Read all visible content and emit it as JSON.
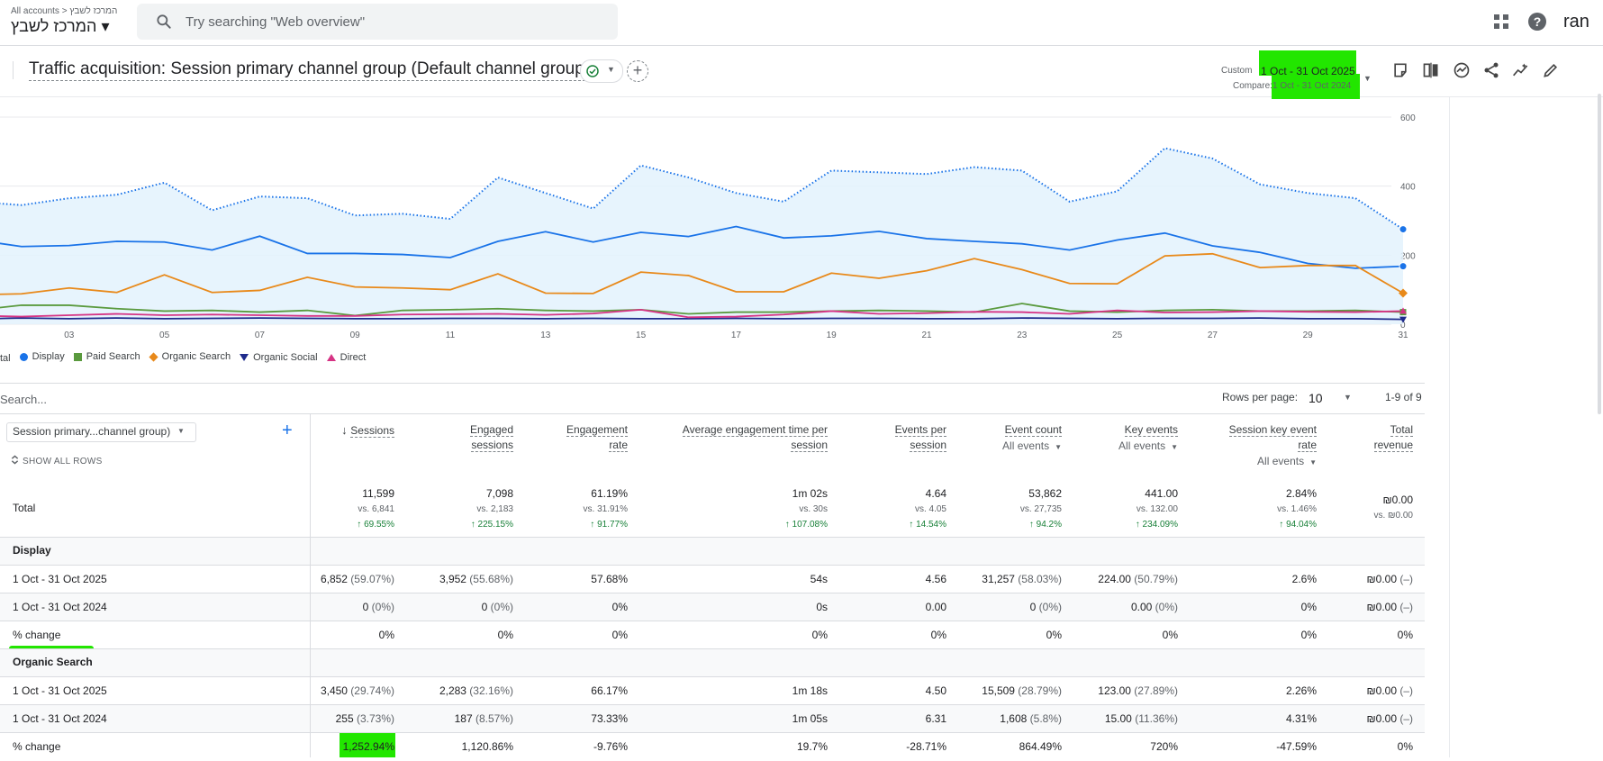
{
  "topbar": {
    "breadcrumb": "All accounts > המרכז לשבץ",
    "account": "המרכז לשבץ ▾",
    "search_placeholder": "Try searching \"Web overview\"",
    "user_initials": "ran",
    "icons": [
      "apps-grid-icon",
      "help-icon"
    ]
  },
  "header": {
    "title": "Traffic acquisition: Session primary channel group (Default channel group)",
    "date_label": "Custom",
    "date_range": "1 Oct - 31 Oct 2025",
    "compare_label": "Compare:",
    "compare_range": "1 Oct - 31 Oct 2024",
    "toolbar_icons": [
      "annotation-icon",
      "compare-icon",
      "insights-icon",
      "share-icon",
      "trend-icon",
      "edit-icon"
    ]
  },
  "chart_data": {
    "type": "line",
    "x_tick_labels": [
      "03",
      "05",
      "07",
      "09",
      "11",
      "13",
      "15",
      "17",
      "19",
      "21",
      "23",
      "25",
      "27",
      "29",
      "31"
    ],
    "y_tick_labels": [
      "600",
      "400",
      "200",
      "0"
    ],
    "x": [
      1,
      2,
      3,
      4,
      5,
      6,
      7,
      8,
      9,
      10,
      11,
      12,
      13,
      14,
      15,
      16,
      17,
      18,
      19,
      20,
      21,
      22,
      23,
      24,
      25,
      26,
      27,
      28,
      29,
      30,
      31
    ],
    "ylim": [
      0,
      600
    ],
    "series": [
      {
        "name": "Total",
        "color": "#1a73e8",
        "style": "dotted",
        "area": true,
        "values": [
          355,
          345,
          365,
          375,
          410,
          330,
          370,
          365,
          315,
          320,
          305,
          425,
          380,
          335,
          460,
          425,
          380,
          355,
          445,
          440,
          435,
          455,
          445,
          355,
          385,
          510,
          480,
          405,
          380,
          365,
          275
        ]
      },
      {
        "name": "Display",
        "color": "#1a73e8",
        "values": [
          245,
          225,
          228,
          240,
          238,
          215,
          255,
          205,
          205,
          202,
          193,
          240,
          268,
          238,
          266,
          254,
          283,
          250,
          256,
          269,
          248,
          240,
          233,
          215,
          244,
          264,
          227,
          208,
          176,
          162,
          168
        ]
      },
      {
        "name": "Paid Search",
        "color": "#5a9a3e",
        "values": [
          40,
          55,
          55,
          45,
          38,
          40,
          35,
          40,
          25,
          40,
          42,
          45,
          40,
          38,
          42,
          30,
          35,
          35,
          38,
          40,
          38,
          35,
          60,
          38,
          35,
          40,
          42,
          38,
          38,
          40,
          35
        ]
      },
      {
        "name": "Organic Search",
        "color": "#e8891a",
        "values": [
          85,
          88,
          105,
          92,
          143,
          92,
          98,
          136,
          108,
          105,
          100,
          146,
          90,
          89,
          151,
          141,
          94,
          94,
          148,
          133,
          155,
          190,
          158,
          118,
          117,
          198,
          204,
          164,
          170,
          170,
          90
        ]
      },
      {
        "name": "Organic Social",
        "color": "#1f2b8c",
        "values": [
          15,
          18,
          16,
          18,
          16,
          17,
          18,
          17,
          16,
          16,
          17,
          17,
          16,
          17,
          16,
          16,
          17,
          16,
          17,
          17,
          16,
          16,
          18,
          17,
          16,
          17,
          17,
          18,
          16,
          16,
          14
        ]
      },
      {
        "name": "Direct",
        "color": "#d63384",
        "values": [
          25,
          22,
          26,
          30,
          26,
          28,
          26,
          24,
          24,
          28,
          29,
          30,
          27,
          31,
          42,
          20,
          22,
          28,
          38,
          30,
          32,
          36,
          35,
          30,
          40,
          34,
          35,
          38,
          36,
          35,
          38
        ]
      }
    ]
  },
  "legend": [
    {
      "label": "tal",
      "color": "#1a73e8",
      "shape": "line"
    },
    {
      "label": "Display",
      "color": "#1a73e8",
      "shape": "circle"
    },
    {
      "label": "Paid Search",
      "color": "#5a9a3e",
      "shape": "square"
    },
    {
      "label": "Organic Search",
      "color": "#e8891a",
      "shape": "diamond"
    },
    {
      "label": "Organic Social",
      "color": "#1f2b8c",
      "shape": "triangle-down"
    },
    {
      "label": "Direct",
      "color": "#d63384",
      "shape": "triangle-up"
    }
  ],
  "table": {
    "search_placeholder": "Search...",
    "rows_per_page_label": "Rows per page:",
    "rows_per_page": "10",
    "pager_range": "1-9 of 9",
    "dimension_select": "Session primary...channel group)",
    "show_all_rows": "SHOW ALL ROWS",
    "columns": [
      {
        "line1": "Sessions",
        "line2": "",
        "sorted": true
      },
      {
        "line1": "Engaged",
        "line2": "sessions"
      },
      {
        "line1": "Engagement",
        "line2": "rate"
      },
      {
        "line1": "Average engagement time per",
        "line2": "session"
      },
      {
        "line1": "Events per",
        "line2": "session"
      },
      {
        "line1": "Event count",
        "sub": "All events"
      },
      {
        "line1": "Key events",
        "sub": "All events"
      },
      {
        "line1": "Session key event",
        "line2": "rate",
        "sub": "All events"
      },
      {
        "line1": "Total",
        "line2": "revenue"
      }
    ],
    "total": {
      "label": "Total",
      "main": [
        "11,599",
        "7,098",
        "61.19%",
        "1m 02s",
        "4.64",
        "53,862",
        "441.00",
        "2.84%",
        "₪0.00"
      ],
      "compare": [
        "vs. 6,841",
        "vs. 2,183",
        "vs. 31.91%",
        "vs. 30s",
        "vs. 4.05",
        "vs. 27,735",
        "vs. 132.00",
        "vs. 1.46%",
        "vs. ₪0.00"
      ],
      "change": [
        "↑ 69.55%",
        "↑ 225.15%",
        "↑ 91.77%",
        "↑ 107.08%",
        "↑ 14.54%",
        "↑ 94.2%",
        "↑ 234.09%",
        "↑ 94.04%",
        ""
      ]
    },
    "rows": [
      {
        "type": "group",
        "label": "Display"
      },
      {
        "type": "data",
        "label": "1 Oct - 31 Oct 2025",
        "cells": [
          [
            "6,852",
            " (59.07%)"
          ],
          [
            "3,952",
            " (55.68%)"
          ],
          [
            "57.68%",
            ""
          ],
          [
            "54s",
            ""
          ],
          [
            "4.56",
            ""
          ],
          [
            "31,257",
            " (58.03%)"
          ],
          [
            "224.00",
            " (50.79%)"
          ],
          [
            "2.6%",
            ""
          ],
          [
            "₪0.00",
            " (–)"
          ]
        ]
      },
      {
        "type": "data",
        "label": "1 Oct - 31 Oct 2024",
        "cells": [
          [
            "0",
            " (0%)"
          ],
          [
            "0",
            " (0%)"
          ],
          [
            "0%",
            ""
          ],
          [
            "0s",
            ""
          ],
          [
            "0.00",
            ""
          ],
          [
            "0",
            " (0%)"
          ],
          [
            "0.00",
            " (0%)"
          ],
          [
            "0%",
            ""
          ],
          [
            "₪0.00",
            " (–)"
          ]
        ]
      },
      {
        "type": "data",
        "label": "% change",
        "cells": [
          [
            "0%",
            ""
          ],
          [
            "0%",
            ""
          ],
          [
            "0%",
            ""
          ],
          [
            "0%",
            ""
          ],
          [
            "0%",
            ""
          ],
          [
            "0%",
            ""
          ],
          [
            "0%",
            ""
          ],
          [
            "0%",
            ""
          ],
          [
            "0%",
            ""
          ]
        ]
      },
      {
        "type": "group",
        "label": "Organic Search"
      },
      {
        "type": "data",
        "label": "1 Oct - 31 Oct 2025",
        "cells": [
          [
            "3,450",
            " (29.74%)"
          ],
          [
            "2,283",
            " (32.16%)"
          ],
          [
            "66.17%",
            ""
          ],
          [
            "1m 18s",
            ""
          ],
          [
            "4.50",
            ""
          ],
          [
            "15,509",
            " (28.79%)"
          ],
          [
            "123.00",
            " (27.89%)"
          ],
          [
            "2.26%",
            ""
          ],
          [
            "₪0.00",
            " (–)"
          ]
        ]
      },
      {
        "type": "data",
        "label": "1 Oct - 31 Oct 2024",
        "cells": [
          [
            "255",
            " (3.73%)"
          ],
          [
            "187",
            " (8.57%)"
          ],
          [
            "73.33%",
            ""
          ],
          [
            "1m 05s",
            ""
          ],
          [
            "6.31",
            ""
          ],
          [
            "1,608",
            " (5.8%)"
          ],
          [
            "15.00",
            " (11.36%)"
          ],
          [
            "4.31%",
            ""
          ],
          [
            "₪0.00",
            " (–)"
          ]
        ]
      },
      {
        "type": "data",
        "label": "% change",
        "cells": [
          [
            "1,252.94%",
            ""
          ],
          [
            "1,120.86%",
            ""
          ],
          [
            "-9.76%",
            ""
          ],
          [
            "19.7%",
            ""
          ],
          [
            "-28.71%",
            ""
          ],
          [
            "864.49%",
            ""
          ],
          [
            "720%",
            ""
          ],
          [
            "-47.59%",
            ""
          ],
          [
            "0%",
            ""
          ]
        ]
      }
    ]
  }
}
